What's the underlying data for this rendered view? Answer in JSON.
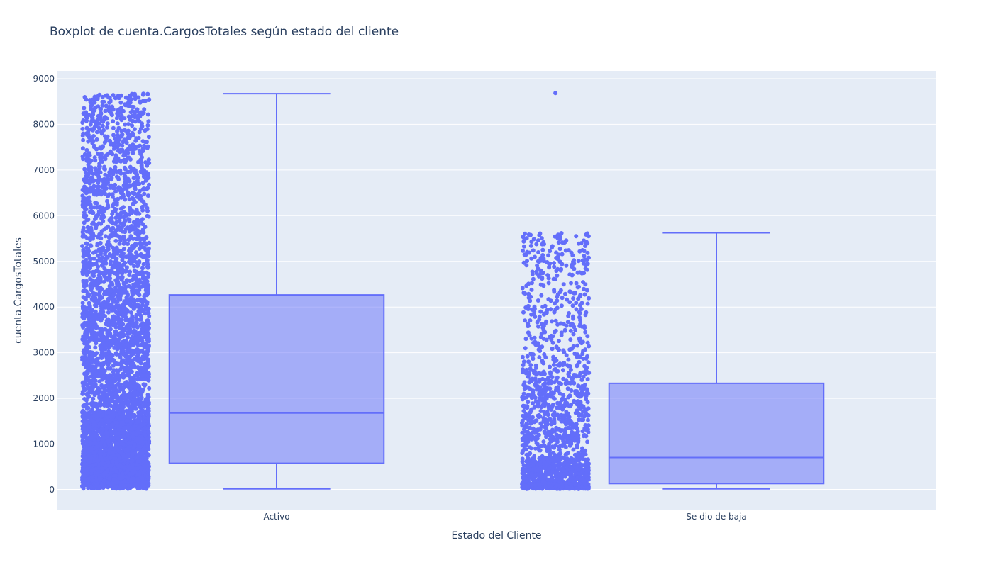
{
  "chart_data": {
    "type": "box",
    "title": "Boxplot de cuenta.CargosTotales según estado del cliente",
    "xlabel": "Estado del Cliente",
    "ylabel": "cuenta.CargosTotales",
    "ylim": [
      -450,
      9170
    ],
    "yticks": [
      0,
      1000,
      2000,
      3000,
      4000,
      5000,
      6000,
      7000,
      8000,
      9000
    ],
    "yticks_labels": [
      "0",
      "1000",
      "2000",
      "3000",
      "4000",
      "5000",
      "6000",
      "7000",
      "8000",
      "9000"
    ],
    "grid": true,
    "points": "all",
    "color": "#636efa",
    "fill_color": "rgba(99,110,250,0.5)",
    "plot_background": "#e5ecf6",
    "categories": [
      "Activo",
      "Se dio de baja"
    ],
    "boxes": [
      {
        "category": "Activo",
        "min": 19,
        "q1": 580,
        "median": 1680,
        "q3": 4265,
        "max": 8672,
        "sample_points": 5163
      },
      {
        "category": "Se dio de baja",
        "min": 19,
        "q1": 135,
        "median": 705,
        "q3": 2330,
        "max": 5625,
        "outlier_max": 8685,
        "sample_points": 1869
      }
    ]
  }
}
